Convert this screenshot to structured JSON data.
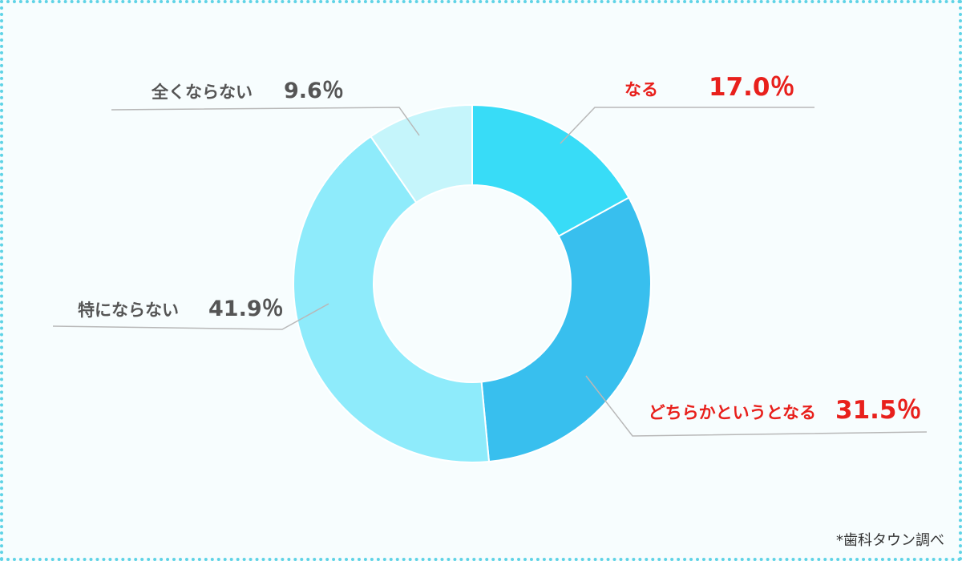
{
  "chart_data": {
    "type": "pie",
    "donut": true,
    "categories": [
      "なる",
      "どちらかというとなる",
      "特にならない",
      "全くならない"
    ],
    "values": [
      17.0,
      31.5,
      41.9,
      9.6
    ],
    "value_labels": [
      "17.0％",
      "31.5％",
      "41.9％",
      "9.6％"
    ],
    "colors": [
      "#38dcf7",
      "#38bfee",
      "#8eebfb",
      "#c5f5fb"
    ],
    "label_colors": [
      "#e8201c",
      "#e8201c",
      "#555555",
      "#555555"
    ]
  },
  "source_note": "*歯科タウン調べ"
}
